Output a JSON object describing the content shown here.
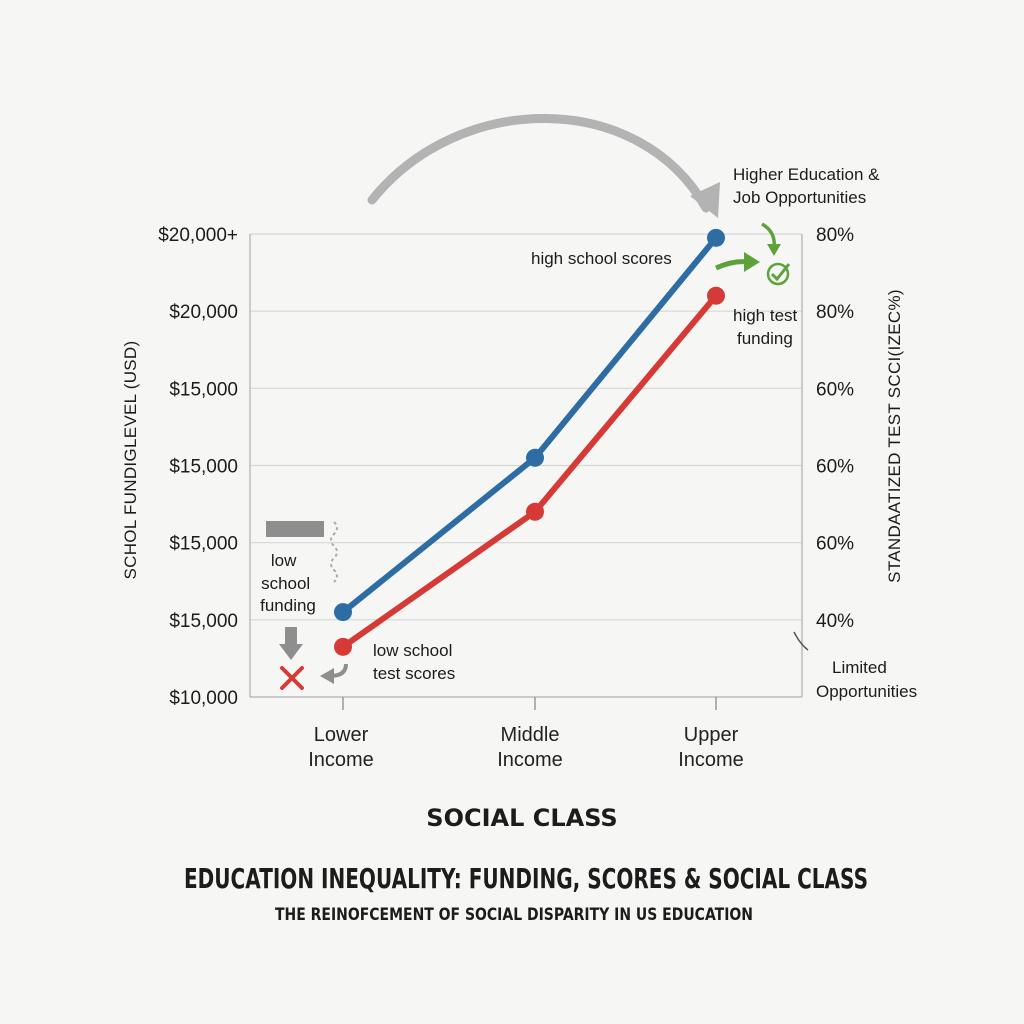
{
  "chart_data": {
    "type": "line",
    "title": "EDUCATION INEQUALITY: FUNDING, SCORES & SOCIAL CLASS",
    "subtitle": "THE REINOFCEMENT OF SOCIAL DISPARITY IN US EDUCATION",
    "xlabel": "SOCIAL CLASS",
    "ylabel_left": "SCHOL FUNDIGLEVEL (USD)",
    "ylabel_right": "STANDAATIZED TEST SCCI(IZEC%)",
    "categories": [
      "Lower Income",
      "Middle Income",
      "Upper Income"
    ],
    "category_lines": [
      [
        "Lower",
        "Income"
      ],
      [
        "Middle",
        "Income"
      ],
      [
        "Upper",
        "Income"
      ]
    ],
    "left_ticks": [
      "$20,000+",
      "$20,000",
      "$15,000",
      "$15,000",
      "$15,000",
      "$15,000",
      "$10,000"
    ],
    "right_ticks": [
      "80%",
      "80%",
      "60%",
      "60%",
      "60%",
      "40%"
    ],
    "ylim": [
      0,
      6
    ],
    "grid": true,
    "series": [
      {
        "color": "#2e6da4",
        "values": [
          1.1,
          3.1,
          5.95
        ]
      },
      {
        "color": "#d63a36",
        "values": [
          0.65,
          2.4,
          5.2
        ]
      }
    ],
    "annotations": {
      "top_right": [
        "Higher Education &",
        "Job Opportunities"
      ],
      "high_scores": "high school scores",
      "high_test": [
        "high test",
        "funding"
      ],
      "low_funding": [
        "low",
        "school",
        "funding"
      ],
      "low_scores": [
        "low school",
        "test scores"
      ],
      "limited": [
        "Limited",
        "Opportunities"
      ]
    },
    "colors": {
      "arc_arrow": "#b3b3b3",
      "green_accent": "#5fa13a",
      "grey_accent": "#8e8e8e",
      "cross": "#d63a36"
    },
    "icons": [
      "curved-arrow-icon",
      "check-circle-icon",
      "cross-icon",
      "down-arrow-icon",
      "wavy-line-icon"
    ]
  }
}
